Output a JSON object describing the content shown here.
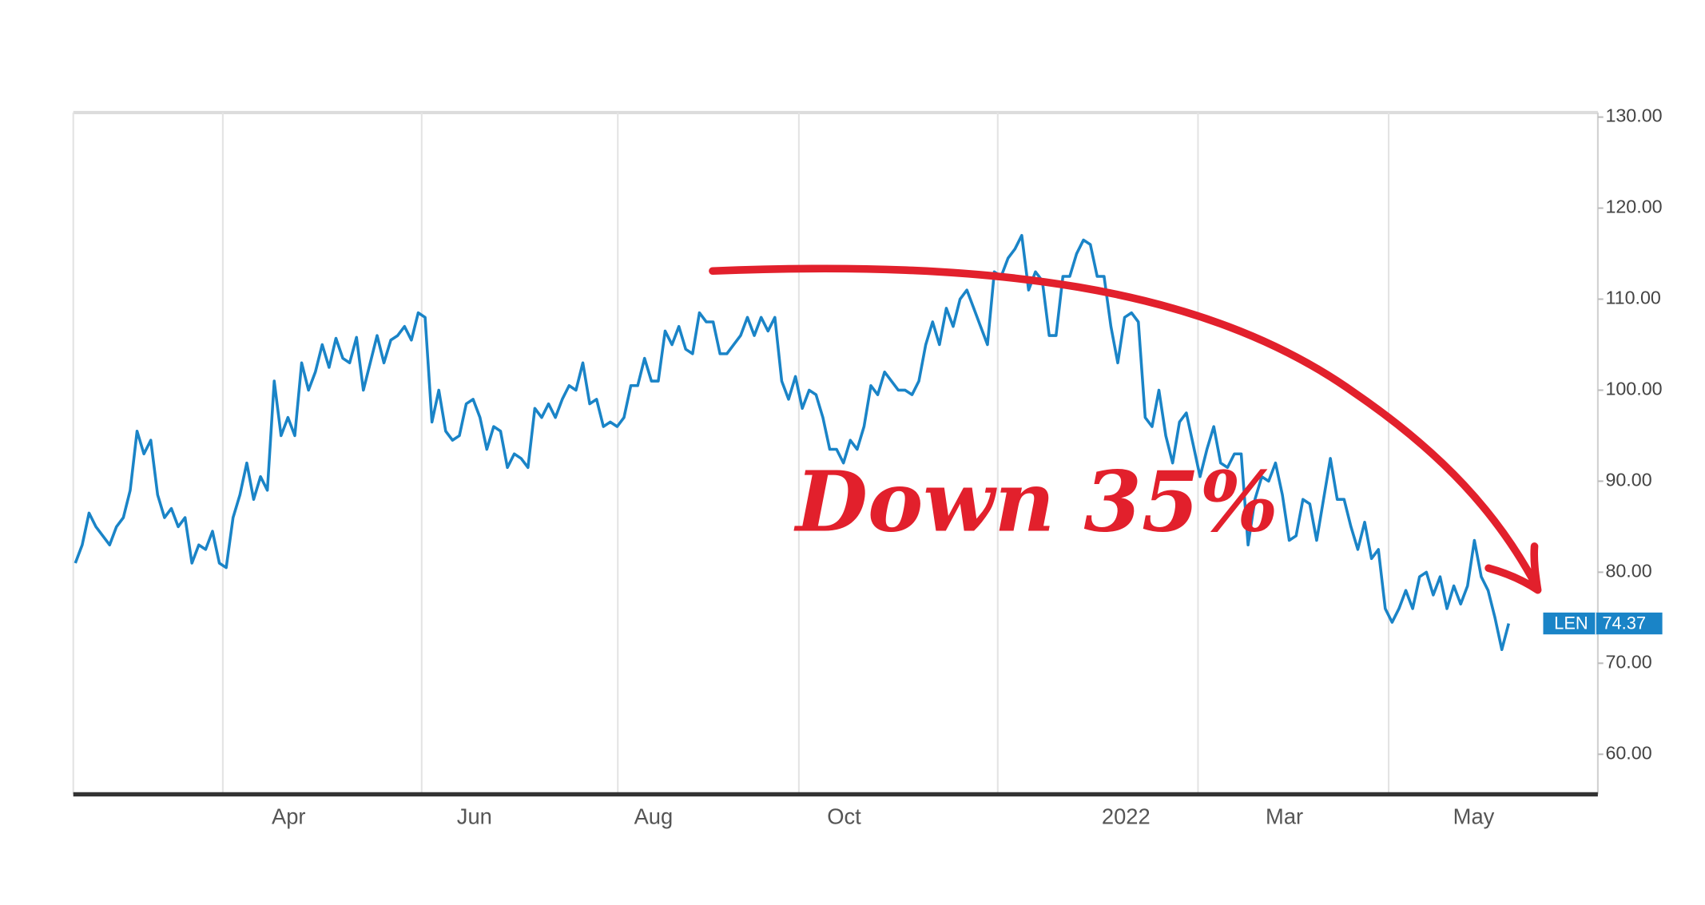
{
  "chart_data": {
    "type": "line",
    "annotation": "Down 35%",
    "series": [
      {
        "name": "LEN",
        "color": "#1a84c7",
        "values": [
          81,
          83,
          86.5,
          85,
          84,
          83,
          85,
          86,
          89,
          95.5,
          93,
          94.5,
          88.5,
          86,
          87,
          85,
          86,
          81,
          83,
          82.5,
          84.5,
          81,
          80.5,
          86,
          88.5,
          92,
          88,
          90.5,
          89,
          101,
          95,
          97,
          95,
          103,
          100,
          102,
          105,
          102.5,
          105.7,
          103.5,
          103,
          105.8,
          100,
          103,
          106,
          103,
          105.5,
          106,
          107,
          105.5,
          108.5,
          108,
          96.5,
          100,
          95.5,
          94.5,
          95,
          98.5,
          99,
          97,
          93.5,
          96,
          95.5,
          91.5,
          93,
          92.5,
          91.5,
          98,
          97,
          98.5,
          97,
          99,
          100.5,
          100,
          103,
          98.5,
          99,
          96,
          96.5,
          96,
          97,
          100.5,
          100.5,
          103.5,
          101,
          101,
          106.5,
          105,
          107,
          104.5,
          104,
          108.5,
          107.5,
          107.5,
          104,
          104,
          105,
          106,
          108,
          106,
          108,
          106.5,
          108,
          101,
          99,
          101.5,
          98,
          100,
          99.5,
          97,
          93.5,
          93.5,
          92,
          94.5,
          93.5,
          96,
          100.5,
          99.5,
          102,
          101,
          100,
          100,
          99.5,
          101,
          105,
          107.5,
          105,
          109,
          107,
          110,
          111,
          109,
          107,
          105,
          113,
          112.5,
          114.5,
          115.5,
          117,
          111,
          113,
          112,
          106,
          106,
          112.5,
          112.5,
          115,
          116.5,
          116,
          112.5,
          112.5,
          107,
          103,
          108,
          108.5,
          107.5,
          97,
          96,
          100,
          95,
          92,
          96.5,
          97.5,
          94,
          90.5,
          93.5,
          96,
          92,
          91.5,
          93,
          93,
          83,
          88,
          90.5,
          90,
          92,
          88.5,
          83.5,
          84,
          88,
          87.5,
          83.5,
          88,
          92.5,
          88,
          88,
          85,
          82.5,
          85.5,
          81.5,
          82.5,
          76,
          74.5,
          76,
          78,
          76,
          79.5,
          80,
          77.5,
          79.5,
          76,
          78.5,
          76.5,
          78.5,
          83.5,
          79.5,
          78,
          75,
          71.5,
          74.37
        ]
      }
    ],
    "last_value_label": "74.37",
    "xlim": [
      -0.3,
      222
    ],
    "xticks": [
      {
        "value": 31.1,
        "label": "Apr"
      },
      {
        "value": 58.2,
        "label": "Jun"
      },
      {
        "value": 84.3,
        "label": "Aug"
      },
      {
        "value": 112.1,
        "label": "Oct"
      },
      {
        "value": 153.2,
        "label": "2022"
      },
      {
        "value": 176.3,
        "label": "Mar"
      },
      {
        "value": 203.9,
        "label": "May"
      }
    ],
    "xgrid": [
      21.5,
      50.5,
      79.1,
      105.5,
      134.5,
      163.7,
      191.5
    ],
    "ylim": [
      55.6,
      130.5
    ],
    "yticks": [
      {
        "value": 60,
        "label": "60.00"
      },
      {
        "value": 70,
        "label": "70.00"
      },
      {
        "value": 80,
        "label": "80.00"
      },
      {
        "value": 90,
        "label": "90.00"
      },
      {
        "value": 100,
        "label": "100.00"
      },
      {
        "value": 110,
        "label": "110.00"
      },
      {
        "value": 120,
        "label": "120.00"
      },
      {
        "value": 130,
        "label": "130.00"
      }
    ]
  }
}
